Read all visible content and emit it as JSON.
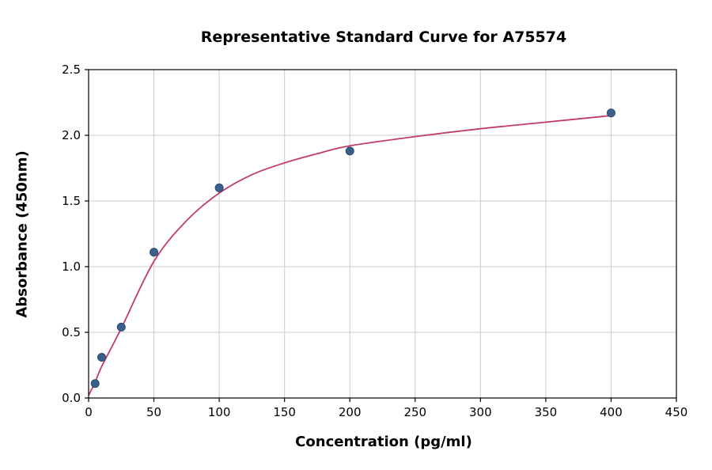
{
  "chart_data": {
    "type": "scatter",
    "title": "Representative Standard Curve for A75574",
    "xlabel": "Concentration (pg/ml)",
    "ylabel": "Absorbance (450nm)",
    "xlim": [
      0,
      450
    ],
    "ylim": [
      0,
      2.5
    ],
    "xtick_values": [
      0,
      50,
      100,
      150,
      200,
      250,
      300,
      350,
      400,
      450
    ],
    "xtick_labels": [
      "0",
      "50",
      "100",
      "150",
      "200",
      "250",
      "300",
      "350",
      "400",
      "450"
    ],
    "ytick_values": [
      0,
      0.5,
      1.0,
      1.5,
      2.0,
      2.5
    ],
    "ytick_labels": [
      "0.0",
      "0.5",
      "1.0",
      "1.5",
      "2.0",
      "2.5"
    ],
    "grid": true,
    "legend": "none",
    "series": [
      {
        "name": "standard-points",
        "type": "scatter",
        "points": [
          {
            "x": 5,
            "y": 0.11
          },
          {
            "x": 10,
            "y": 0.31
          },
          {
            "x": 25,
            "y": 0.54
          },
          {
            "x": 50,
            "y": 1.11
          },
          {
            "x": 100,
            "y": 1.6
          },
          {
            "x": 200,
            "y": 1.88
          },
          {
            "x": 400,
            "y": 2.17
          }
        ]
      },
      {
        "name": "fitted-curve",
        "type": "line",
        "points": [
          {
            "x": 0,
            "y": 0.02
          },
          {
            "x": 5,
            "y": 0.12
          },
          {
            "x": 10,
            "y": 0.24
          },
          {
            "x": 25,
            "y": 0.53
          },
          {
            "x": 50,
            "y": 1.04
          },
          {
            "x": 75,
            "y": 1.35
          },
          {
            "x": 100,
            "y": 1.56
          },
          {
            "x": 125,
            "y": 1.7
          },
          {
            "x": 150,
            "y": 1.79
          },
          {
            "x": 175,
            "y": 1.86
          },
          {
            "x": 200,
            "y": 1.92
          },
          {
            "x": 250,
            "y": 1.99
          },
          {
            "x": 300,
            "y": 2.05
          },
          {
            "x": 350,
            "y": 2.1
          },
          {
            "x": 400,
            "y": 2.15
          }
        ]
      }
    ],
    "colors": {
      "point_fill": "#3b608c",
      "point_edge": "#27496d",
      "curve": "#c23b6a",
      "grid": "#cccccc",
      "axis": "#000000",
      "background": "#ffffff"
    }
  }
}
